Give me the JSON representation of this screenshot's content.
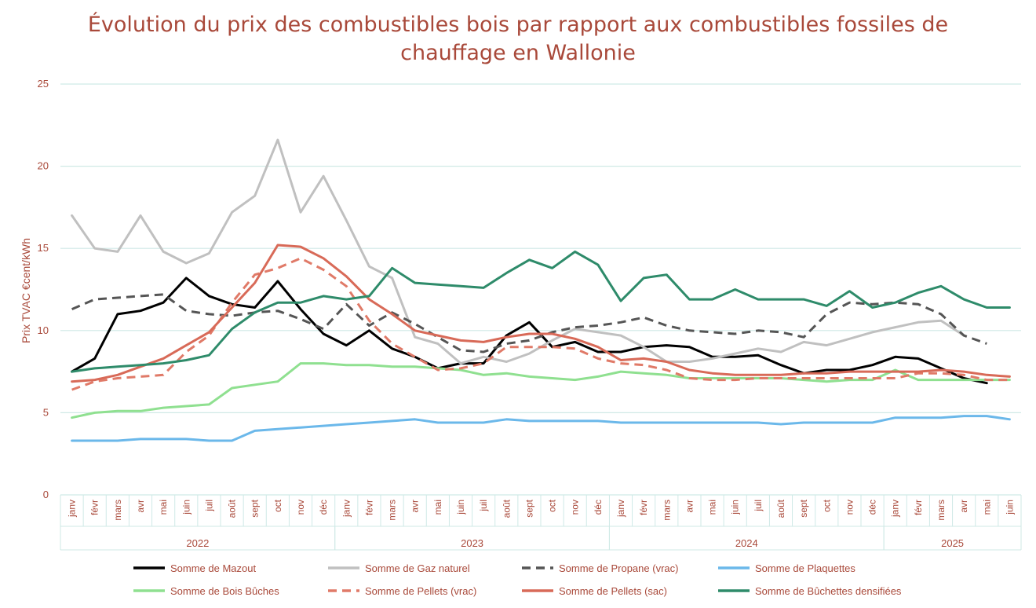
{
  "chart_data": {
    "type": "line",
    "title": "Évolution du prix des combustibles bois par rapport aux combustibles fossiles de chauffage en Wallonie",
    "ylabel": "Prix TVAC €cent/kWh",
    "xlabel": "",
    "ylim": [
      0,
      25
    ],
    "yticks": [
      "0",
      "5",
      "10",
      "15",
      "20",
      "25"
    ],
    "grid": true,
    "legend_position": "bottom",
    "years": [
      {
        "label": "2022",
        "start": 0,
        "end": 11
      },
      {
        "label": "2023",
        "start": 12,
        "end": 23
      },
      {
        "label": "2024",
        "start": 24,
        "end": 35
      },
      {
        "label": "2025",
        "start": 36,
        "end": 41
      }
    ],
    "categories": [
      "janv",
      "févr",
      "mars",
      "avr",
      "mai",
      "juin",
      "juil",
      "août",
      "sept",
      "oct",
      "nov",
      "déc",
      "janv",
      "févr",
      "mars",
      "avr",
      "mai",
      "juin",
      "juil",
      "août",
      "sept",
      "oct",
      "nov",
      "déc",
      "janv",
      "févr",
      "mars",
      "avr",
      "mai",
      "juin",
      "juil",
      "août",
      "sept",
      "oct",
      "nov",
      "déc",
      "janv",
      "févr",
      "mars",
      "avr",
      "mai",
      "juin"
    ],
    "series": [
      {
        "name": "Somme de Mazout",
        "color": "#000000",
        "dash": false,
        "values": [
          7.5,
          8.3,
          11.0,
          11.2,
          11.7,
          13.2,
          12.1,
          11.6,
          11.4,
          13.0,
          11.3,
          9.8,
          9.1,
          10.0,
          8.9,
          8.4,
          7.7,
          8.0,
          8.0,
          9.7,
          10.5,
          9.0,
          9.3,
          8.7,
          8.7,
          9.0,
          9.1,
          9.0,
          8.4,
          8.4,
          8.5,
          7.9,
          7.4,
          7.6,
          7.6,
          7.9,
          8.4,
          8.3,
          7.7,
          7.1,
          6.8,
          null
        ]
      },
      {
        "name": "Somme de Gaz naturel",
        "color": "#c0c0c0",
        "dash": false,
        "values": [
          17.0,
          15.0,
          14.8,
          17.0,
          14.8,
          14.1,
          14.7,
          17.2,
          18.2,
          21.6,
          17.2,
          19.4,
          16.7,
          13.9,
          13.2,
          9.6,
          9.2,
          8.0,
          8.4,
          8.1,
          8.6,
          9.4,
          10.1,
          9.9,
          9.7,
          9.0,
          8.1,
          8.1,
          8.3,
          8.6,
          8.9,
          8.7,
          9.3,
          9.1,
          9.5,
          9.9,
          10.2,
          10.5,
          10.6,
          9.7,
          null,
          null
        ]
      },
      {
        "name": "Somme de Propane (vrac)",
        "color": "#555555",
        "dash": true,
        "values": [
          11.3,
          11.9,
          12.0,
          12.1,
          12.2,
          11.2,
          11.0,
          10.9,
          11.1,
          11.2,
          10.7,
          10.1,
          11.6,
          10.3,
          11.1,
          10.4,
          9.6,
          8.8,
          8.7,
          9.2,
          9.4,
          9.9,
          10.2,
          10.3,
          10.5,
          10.8,
          10.3,
          10.0,
          9.9,
          9.8,
          10.0,
          9.9,
          9.6,
          11.0,
          11.7,
          11.6,
          11.7,
          11.6,
          11.0,
          9.7,
          9.2,
          null
        ]
      },
      {
        "name": "Somme de Plaquettes",
        "color": "#6bb8ea",
        "dash": false,
        "values": [
          3.3,
          3.3,
          3.3,
          3.4,
          3.4,
          3.4,
          3.3,
          3.3,
          3.9,
          4.0,
          4.1,
          4.2,
          4.3,
          4.4,
          4.5,
          4.6,
          4.4,
          4.4,
          4.4,
          4.6,
          4.5,
          4.5,
          4.5,
          4.5,
          4.4,
          4.4,
          4.4,
          4.4,
          4.4,
          4.4,
          4.4,
          4.3,
          4.4,
          4.4,
          4.4,
          4.4,
          4.7,
          4.7,
          4.7,
          4.8,
          4.8,
          4.6
        ]
      },
      {
        "name": "Somme de Bois Bûches",
        "color": "#8fe090",
        "dash": false,
        "values": [
          4.7,
          5.0,
          5.1,
          5.1,
          5.3,
          5.4,
          5.5,
          6.5,
          6.7,
          6.9,
          8.0,
          8.0,
          7.9,
          7.9,
          7.8,
          7.8,
          7.7,
          7.6,
          7.3,
          7.4,
          7.2,
          7.1,
          7.0,
          7.2,
          7.5,
          7.4,
          7.3,
          7.1,
          7.1,
          7.1,
          7.1,
          7.1,
          7.0,
          6.9,
          7.0,
          7.0,
          7.6,
          7.0,
          7.0,
          7.0,
          7.0,
          7.0
        ]
      },
      {
        "name": "Somme de Pellets (vrac)",
        "color": "#e07a68",
        "dash": true,
        "values": [
          6.4,
          6.9,
          7.1,
          7.2,
          7.3,
          8.7,
          9.7,
          11.7,
          13.4,
          13.8,
          14.4,
          13.7,
          12.7,
          10.6,
          9.2,
          8.4,
          7.6,
          7.7,
          8.0,
          9.0,
          9.0,
          9.0,
          8.9,
          8.3,
          8.0,
          7.9,
          7.6,
          7.1,
          7.0,
          7.0,
          7.1,
          7.1,
          7.1,
          7.1,
          7.1,
          7.1,
          7.1,
          7.4,
          7.4,
          7.3,
          7.0,
          7.0
        ]
      },
      {
        "name": "Somme de Pellets (sac)",
        "color": "#d86a58",
        "dash": false,
        "values": [
          6.9,
          7.0,
          7.3,
          7.8,
          8.3,
          9.1,
          9.9,
          11.4,
          12.9,
          15.2,
          15.1,
          14.4,
          13.3,
          11.9,
          11.0,
          10.0,
          9.7,
          9.4,
          9.3,
          9.6,
          9.8,
          9.8,
          9.5,
          9.0,
          8.2,
          8.3,
          8.1,
          7.6,
          7.4,
          7.3,
          7.3,
          7.3,
          7.4,
          7.4,
          7.5,
          7.5,
          7.5,
          7.5,
          7.6,
          7.5,
          7.3,
          7.2
        ]
      },
      {
        "name": "Somme de Bûchettes densifiées",
        "color": "#2e8b6a",
        "dash": false,
        "values": [
          7.5,
          7.7,
          7.8,
          7.9,
          8.0,
          8.2,
          8.5,
          10.1,
          11.1,
          11.7,
          11.7,
          12.1,
          11.9,
          12.1,
          13.8,
          12.9,
          12.8,
          12.7,
          12.6,
          13.5,
          14.3,
          13.8,
          14.8,
          14.0,
          11.8,
          13.2,
          13.4,
          11.9,
          11.9,
          12.5,
          11.9,
          11.9,
          11.9,
          11.5,
          12.4,
          11.4,
          11.7,
          12.3,
          12.7,
          11.9,
          11.4,
          11.4
        ]
      }
    ]
  }
}
